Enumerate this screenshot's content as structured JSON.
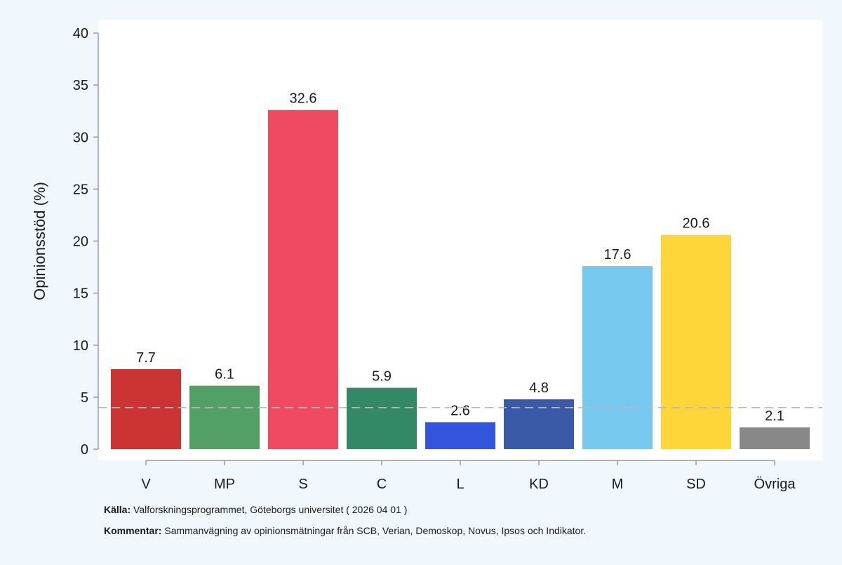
{
  "chart_data": {
    "type": "bar",
    "ylabel": "Opinionsstöd (%)",
    "ylim": [
      0,
      40
    ],
    "yticks": [
      0,
      5,
      10,
      15,
      20,
      25,
      30,
      35,
      40
    ],
    "threshold": 4,
    "categories": [
      "V",
      "MP",
      "S",
      "C",
      "L",
      "KD",
      "M",
      "SD",
      "Övriga"
    ],
    "values": [
      7.7,
      6.1,
      32.6,
      5.9,
      2.6,
      4.8,
      17.6,
      20.6,
      2.1
    ],
    "value_labels": [
      "7.7",
      "6.1",
      "32.6",
      "5.9",
      "2.6",
      "4.8",
      "17.6",
      "20.6",
      "2.1"
    ],
    "colors": [
      "#cc3333",
      "#52a065",
      "#ef4a60",
      "#338866",
      "#3355dd",
      "#3a5aa8",
      "#77c8ee",
      "#ffd63a",
      "#888888"
    ]
  },
  "footer": {
    "source_label": "Källa:",
    "source_text": " Valforskningsprogrammet, Göteborgs universitet ( 2026 04 01 )",
    "comment_label": "Kommentar:",
    "comment_text": " Sammanvägning av opinionsmätningar från SCB, Verian, Demoskop, Novus, Ipsos och Indikator."
  }
}
